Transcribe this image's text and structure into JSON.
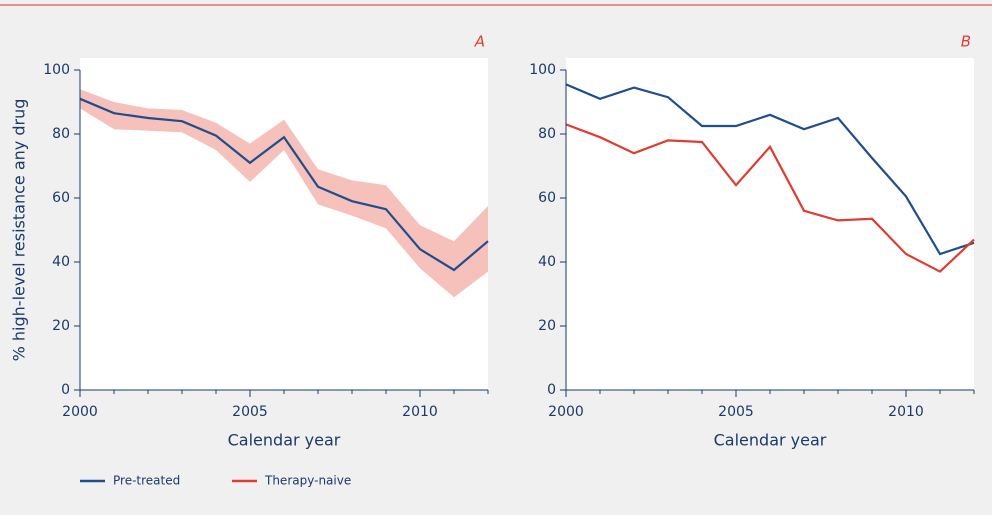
{
  "chart_data": [
    {
      "type": "line",
      "label": "A",
      "ylabel": "% high-level resistance any drug",
      "xlabel": "Calendar year",
      "x": [
        2000,
        2001,
        2002,
        2003,
        2004,
        2005,
        2006,
        2007,
        2008,
        2009,
        2010,
        2011,
        2012
      ],
      "series": [
        {
          "color": "#1f4e8c",
          "band_color": "#f6c0bb",
          "values": [
            91,
            86.5,
            85,
            84,
            79.5,
            71,
            79,
            63.5,
            59,
            56.5,
            44,
            37.5,
            46.5
          ],
          "lower": [
            88,
            81.5,
            81,
            80.5,
            75,
            65,
            75,
            58,
            54.5,
            50.5,
            38,
            29,
            37
          ],
          "upper": [
            94,
            90,
            88,
            87.5,
            83.5,
            77,
            84.5,
            69,
            65.5,
            64,
            51.5,
            46.5,
            57.5
          ]
        }
      ],
      "xlim": [
        2000,
        2012
      ],
      "ylim": [
        0,
        100
      ],
      "xticks": [
        2000,
        2005,
        2010
      ],
      "yticks": [
        0,
        20,
        40,
        60,
        80,
        100
      ]
    },
    {
      "type": "line",
      "label": "B",
      "xlabel": "Calendar year",
      "x": [
        2000,
        2001,
        2002,
        2003,
        2004,
        2005,
        2006,
        2007,
        2008,
        2009,
        2010,
        2011,
        2012
      ],
      "series": [
        {
          "name": "Pre-treated",
          "color": "#1f4e8c",
          "values": [
            95.5,
            91,
            94.5,
            91.5,
            82.5,
            82.5,
            86,
            81.5,
            85,
            72.5,
            60.5,
            42.5,
            46
          ]
        },
        {
          "name": "Therapy-naive",
          "color": "#e03c31",
          "values": [
            83,
            79,
            74,
            78,
            77.5,
            64,
            76,
            56,
            53,
            53.5,
            42.5,
            37,
            47
          ]
        }
      ],
      "xlim": [
        2000,
        2012
      ],
      "ylim": [
        0,
        100
      ],
      "xticks": [
        2000,
        2005,
        2010
      ],
      "yticks": [
        0,
        20,
        40,
        60,
        80,
        100
      ]
    }
  ]
}
